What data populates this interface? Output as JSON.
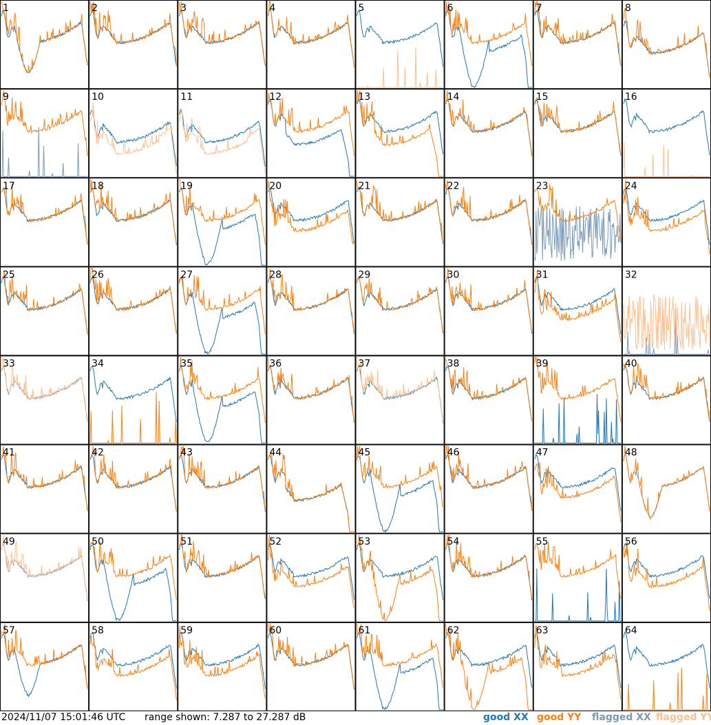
{
  "footer": {
    "timestamp": "2024/11/07 15:01:46 UTC",
    "range_text": "range shown: 7.287 to 27.287 dB",
    "legend": {
      "good_xx": "good XX",
      "good_yy": "good YY",
      "flagged_xx": "flagged XX",
      "flagged_yy": "flagged YY"
    }
  },
  "colors": {
    "good_xx": "#1f77b4",
    "good_yy": "#ff7f0e",
    "flagged_xx": "#7a9ab8",
    "flagged_yy": "#ffc08f",
    "grid": "#000000"
  },
  "chart_data": {
    "type": "line",
    "layout": "8x8 small multiples of spectra per tile",
    "y_unit": "dB",
    "ylim": [
      7.287,
      27.287
    ],
    "tiles": [
      {
        "label": "1",
        "xx": "good",
        "yy": "good",
        "xx_shape": "dip",
        "yy_shape": "dip"
      },
      {
        "label": "2",
        "xx": "good",
        "yy": "good",
        "xx_shape": "normal",
        "yy_shape": "normal"
      },
      {
        "label": "3",
        "xx": "good",
        "yy": "good",
        "xx_shape": "normal",
        "yy_shape": "normal"
      },
      {
        "label": "4",
        "xx": "good",
        "yy": "good",
        "xx_shape": "normal",
        "yy_shape": "normal"
      },
      {
        "label": "5",
        "xx": "good",
        "yy": "flagged",
        "xx_shape": "normal",
        "yy_shape": "dead"
      },
      {
        "label": "6",
        "xx": "good",
        "yy": "good",
        "xx_shape": "deepdip",
        "yy_shape": "normal"
      },
      {
        "label": "7",
        "xx": "good",
        "yy": "good",
        "xx_shape": "normal",
        "yy_shape": "normal"
      },
      {
        "label": "8",
        "xx": "good",
        "yy": "good",
        "xx_shape": "low",
        "yy_shape": "low"
      },
      {
        "label": "9",
        "xx": "flagged",
        "yy": "good",
        "xx_shape": "dead",
        "yy_shape": "normal"
      },
      {
        "label": "10",
        "xx": "good",
        "yy": "flagged",
        "xx_shape": "low",
        "yy_shape": "lowdip"
      },
      {
        "label": "11",
        "xx": "good",
        "yy": "flagged",
        "xx_shape": "low",
        "yy_shape": "lowdip"
      },
      {
        "label": "12",
        "xx": "good",
        "yy": "good",
        "xx_shape": "drop",
        "yy_shape": "normal"
      },
      {
        "label": "13",
        "xx": "good",
        "yy": "good",
        "xx_shape": "normal",
        "yy_shape": "drop"
      },
      {
        "label": "14",
        "xx": "good",
        "yy": "good",
        "xx_shape": "normal",
        "yy_shape": "normal"
      },
      {
        "label": "15",
        "xx": "good",
        "yy": "good",
        "xx_shape": "normal",
        "yy_shape": "normal"
      },
      {
        "label": "16",
        "xx": "good",
        "yy": "flagged",
        "xx_shape": "normal",
        "yy_shape": "dead"
      },
      {
        "label": "17",
        "xx": "good",
        "yy": "good",
        "xx_shape": "normal",
        "yy_shape": "normal"
      },
      {
        "label": "18",
        "xx": "good",
        "yy": "good",
        "xx_shape": "normal",
        "yy_shape": "normal"
      },
      {
        "label": "19",
        "xx": "good",
        "yy": "good",
        "xx_shape": "deepdip",
        "yy_shape": "normal"
      },
      {
        "label": "20",
        "xx": "good",
        "yy": "good",
        "xx_shape": "normal",
        "yy_shape": "low"
      },
      {
        "label": "21",
        "xx": "good",
        "yy": "good",
        "xx_shape": "normal",
        "yy_shape": "normal"
      },
      {
        "label": "22",
        "xx": "good",
        "yy": "good",
        "xx_shape": "normal",
        "yy_shape": "normal"
      },
      {
        "label": "23",
        "xx": "flagged",
        "yy": "good",
        "xx_shape": "noisy",
        "yy_shape": "normal"
      },
      {
        "label": "24",
        "xx": "good",
        "yy": "good",
        "xx_shape": "normal",
        "yy_shape": "low"
      },
      {
        "label": "25",
        "xx": "good",
        "yy": "good",
        "xx_shape": "normal",
        "yy_shape": "normal"
      },
      {
        "label": "26",
        "xx": "good",
        "yy": "good",
        "xx_shape": "normal",
        "yy_shape": "normal"
      },
      {
        "label": "27",
        "xx": "good",
        "yy": "good",
        "xx_shape": "deepdip",
        "yy_shape": "normal"
      },
      {
        "label": "28",
        "xx": "good",
        "yy": "good",
        "xx_shape": "normal",
        "yy_shape": "normal"
      },
      {
        "label": "29",
        "xx": "good",
        "yy": "good",
        "xx_shape": "normal",
        "yy_shape": "normal"
      },
      {
        "label": "30",
        "xx": "good",
        "yy": "good",
        "xx_shape": "normal",
        "yy_shape": "normal"
      },
      {
        "label": "31",
        "xx": "good",
        "yy": "good",
        "xx_shape": "normal",
        "yy_shape": "low"
      },
      {
        "label": "32",
        "xx": "flagged",
        "yy": "flagged",
        "xx_shape": "dead",
        "yy_shape": "noisy"
      },
      {
        "label": "33",
        "xx": "flagged",
        "yy": "flagged",
        "xx_shape": "normal",
        "yy_shape": "normal"
      },
      {
        "label": "34",
        "xx": "good",
        "yy": "good",
        "xx_shape": "normal",
        "yy_shape": "dead"
      },
      {
        "label": "35",
        "xx": "good",
        "yy": "good",
        "xx_shape": "deepdip",
        "yy_shape": "normal"
      },
      {
        "label": "36",
        "xx": "good",
        "yy": "good",
        "xx_shape": "normal",
        "yy_shape": "normal"
      },
      {
        "label": "37",
        "xx": "good",
        "yy": "flagged",
        "xx_shape": "normal",
        "yy_shape": "normal"
      },
      {
        "label": "38",
        "xx": "good",
        "yy": "good",
        "xx_shape": "normal",
        "yy_shape": "normal"
      },
      {
        "label": "39",
        "xx": "good",
        "yy": "good",
        "xx_shape": "dead",
        "yy_shape": "normal"
      },
      {
        "label": "40",
        "xx": "good",
        "yy": "good",
        "xx_shape": "normal",
        "yy_shape": "normal"
      },
      {
        "label": "41",
        "xx": "good",
        "yy": "good",
        "xx_shape": "normal",
        "yy_shape": "normal"
      },
      {
        "label": "42",
        "xx": "good",
        "yy": "good",
        "xx_shape": "normal",
        "yy_shape": "normal"
      },
      {
        "label": "43",
        "xx": "good",
        "yy": "good",
        "xx_shape": "normal",
        "yy_shape": "normal"
      },
      {
        "label": "44",
        "xx": "good",
        "yy": "good",
        "xx_shape": "drop",
        "yy_shape": "drop"
      },
      {
        "label": "45",
        "xx": "good",
        "yy": "good",
        "xx_shape": "deepdip",
        "yy_shape": "normal"
      },
      {
        "label": "46",
        "xx": "good",
        "yy": "good",
        "xx_shape": "normal",
        "yy_shape": "normal"
      },
      {
        "label": "47",
        "xx": "good",
        "yy": "good",
        "xx_shape": "normal",
        "yy_shape": "low"
      },
      {
        "label": "48",
        "xx": "flagged",
        "yy": "good",
        "xx_shape": "dip",
        "yy_shape": "dip"
      },
      {
        "label": "49",
        "xx": "flagged",
        "yy": "flagged",
        "xx_shape": "normal",
        "yy_shape": "normal"
      },
      {
        "label": "50",
        "xx": "good",
        "yy": "good",
        "xx_shape": "deepdip",
        "yy_shape": "normal"
      },
      {
        "label": "51",
        "xx": "good",
        "yy": "good",
        "xx_shape": "normal",
        "yy_shape": "normal"
      },
      {
        "label": "52",
        "xx": "good",
        "yy": "good",
        "xx_shape": "normal",
        "yy_shape": "low"
      },
      {
        "label": "53",
        "xx": "good",
        "yy": "good",
        "xx_shape": "normal",
        "yy_shape": "deepdip"
      },
      {
        "label": "54",
        "xx": "good",
        "yy": "good",
        "xx_shape": "normal",
        "yy_shape": "normal"
      },
      {
        "label": "55",
        "xx": "good",
        "yy": "good",
        "xx_shape": "dead",
        "yy_shape": "normal"
      },
      {
        "label": "56",
        "xx": "good",
        "yy": "good",
        "xx_shape": "normal",
        "yy_shape": "low"
      },
      {
        "label": "57",
        "xx": "good",
        "yy": "good",
        "xx_shape": "dip",
        "yy_shape": "normal"
      },
      {
        "label": "58",
        "xx": "good",
        "yy": "good",
        "xx_shape": "normal",
        "yy_shape": "low"
      },
      {
        "label": "59",
        "xx": "good",
        "yy": "good",
        "xx_shape": "normal",
        "yy_shape": "low"
      },
      {
        "label": "60",
        "xx": "good",
        "yy": "good",
        "xx_shape": "normal",
        "yy_shape": "normal"
      },
      {
        "label": "61",
        "xx": "good",
        "yy": "good",
        "xx_shape": "deepdip",
        "yy_shape": "normal"
      },
      {
        "label": "62",
        "xx": "good",
        "yy": "good",
        "xx_shape": "normal",
        "yy_shape": "deepdip"
      },
      {
        "label": "63",
        "xx": "good",
        "yy": "good",
        "xx_shape": "normal",
        "yy_shape": "low"
      },
      {
        "label": "64",
        "xx": "good",
        "yy": "good",
        "xx_shape": "normal",
        "yy_shape": "dead"
      }
    ]
  }
}
